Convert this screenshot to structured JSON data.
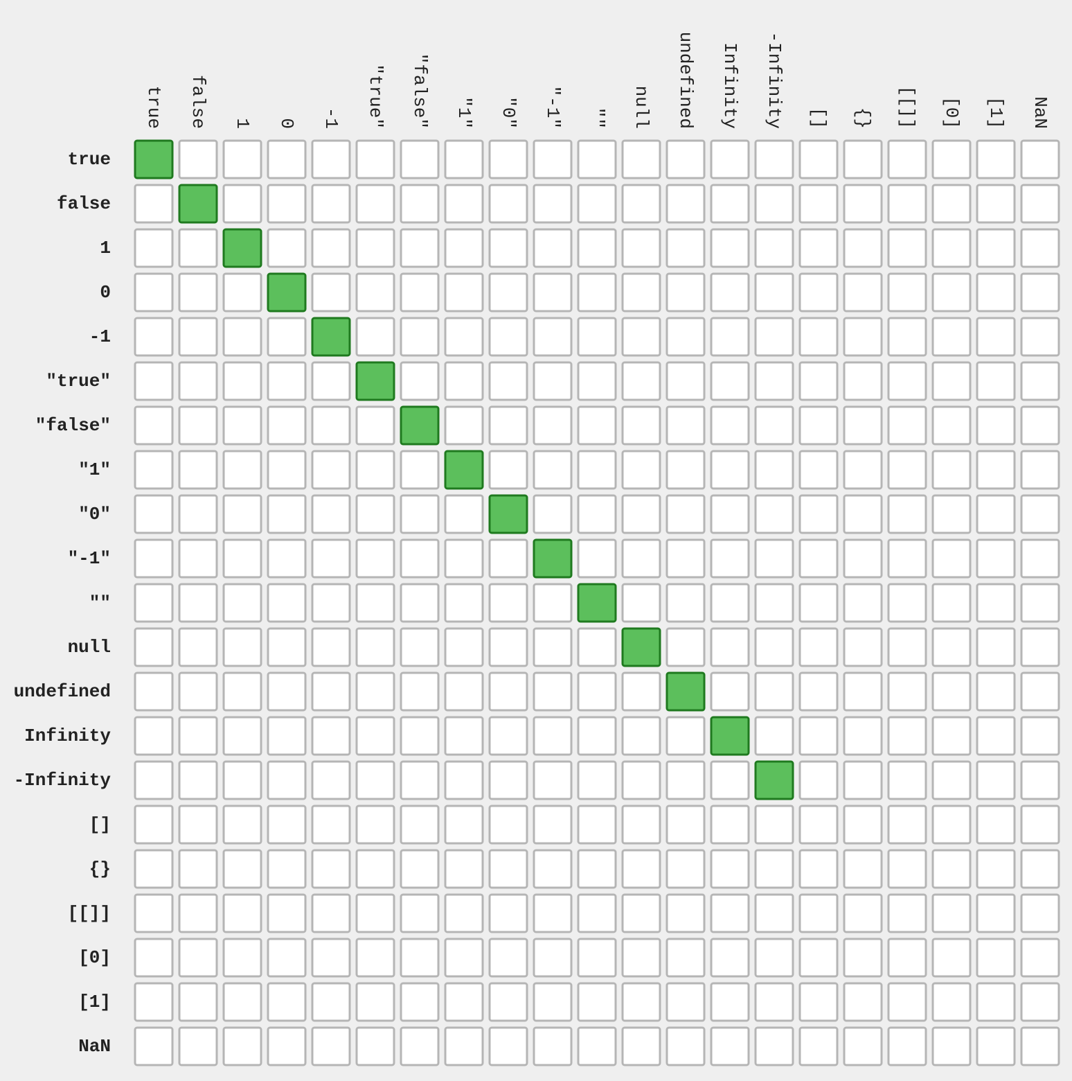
{
  "chart_data": {
    "type": "heatmap",
    "title": "",
    "row_labels": [
      "true",
      "false",
      "1",
      "0",
      "-1",
      "\"true\"",
      "\"false\"",
      "\"1\"",
      "\"0\"",
      "\"-1\"",
      "\"\"",
      "null",
      "undefined",
      "Infinity",
      "-Infinity",
      "[]",
      "{}",
      "[[]]",
      "[0]",
      "[1]",
      "NaN"
    ],
    "col_labels": [
      "true",
      "false",
      "1",
      "0",
      "-1",
      "\"true\"",
      "\"false\"",
      "\"1\"",
      "\"0\"",
      "\"-1\"",
      "\"\"",
      "null",
      "undefined",
      "Infinity",
      "-Infinity",
      "[]",
      "{}",
      "[[]]",
      "[0]",
      "[1]",
      "NaN"
    ],
    "matches": [
      [
        0,
        0
      ],
      [
        1,
        1
      ],
      [
        2,
        2
      ],
      [
        3,
        3
      ],
      [
        4,
        4
      ],
      [
        5,
        5
      ],
      [
        6,
        6
      ],
      [
        7,
        7
      ],
      [
        8,
        8
      ],
      [
        9,
        9
      ],
      [
        10,
        10
      ],
      [
        11,
        11
      ],
      [
        12,
        12
      ],
      [
        13,
        13
      ],
      [
        14,
        14
      ]
    ],
    "colors": {
      "match_fill": "#5cbf5c",
      "match_border": "#1f7a1f",
      "empty_fill": "#ffffff",
      "empty_border": "#b5b5b5",
      "background": "#efefef"
    }
  }
}
